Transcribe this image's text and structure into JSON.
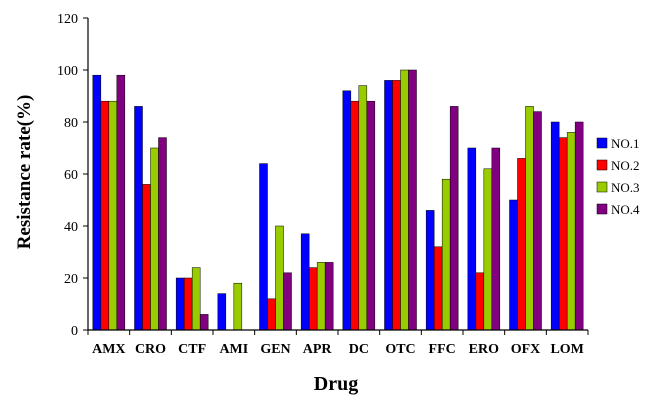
{
  "chart_data": {
    "type": "bar",
    "title": "",
    "xlabel": "Drug",
    "ylabel": "Resistance rate(%)",
    "ylim": [
      0,
      120
    ],
    "yticks": [
      0,
      20,
      40,
      60,
      80,
      100,
      120
    ],
    "grid": false,
    "legend_position": "right",
    "categories": [
      "AMX",
      "CRO",
      "CTF",
      "AMI",
      "GEN",
      "APR",
      "DC",
      "OTC",
      "FFC",
      "ERO",
      "OFX",
      "LOM"
    ],
    "series": [
      {
        "name": "NO.1",
        "color": "#0000FF",
        "values": [
          98,
          86,
          20,
          14,
          64,
          37,
          92,
          96,
          46,
          70,
          50,
          80
        ]
      },
      {
        "name": "NO.2",
        "color": "#FF0000",
        "values": [
          88,
          56,
          20,
          0,
          12,
          24,
          88,
          96,
          32,
          22,
          66,
          74
        ]
      },
      {
        "name": "NO.3",
        "color": "#99CC00",
        "values": [
          88,
          70,
          24,
          18,
          40,
          26,
          94,
          100,
          58,
          62,
          86,
          76
        ]
      },
      {
        "name": "NO.4",
        "color": "#800080",
        "values": [
          98,
          74,
          6,
          0,
          22,
          26,
          88,
          100,
          86,
          70,
          84,
          80
        ]
      }
    ]
  }
}
